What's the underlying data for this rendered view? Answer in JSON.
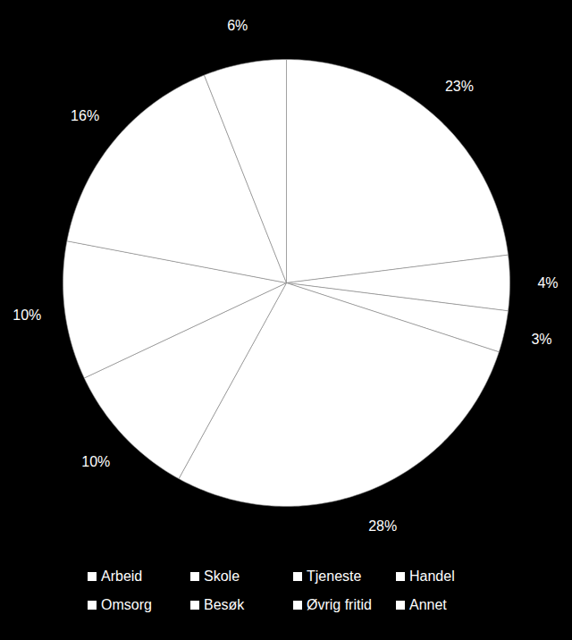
{
  "chart_data": {
    "type": "pie",
    "categories": [
      "Arbeid",
      "Skole",
      "Tjeneste",
      "Handel",
      "Omsorg",
      "Besøk",
      "Øvrig fritid",
      "Annet"
    ],
    "values": [
      23,
      4,
      3,
      28,
      10,
      10,
      16,
      6
    ],
    "value_labels": [
      "23%",
      "4%",
      "3%",
      "28%",
      "10%",
      "10%",
      "16%",
      "6%"
    ],
    "colors": [
      "#ffffff",
      "#ffffff",
      "#ffffff",
      "#ffffff",
      "#ffffff",
      "#ffffff",
      "#ffffff",
      "#ffffff"
    ],
    "data_labels": true,
    "legend": "bottom"
  }
}
